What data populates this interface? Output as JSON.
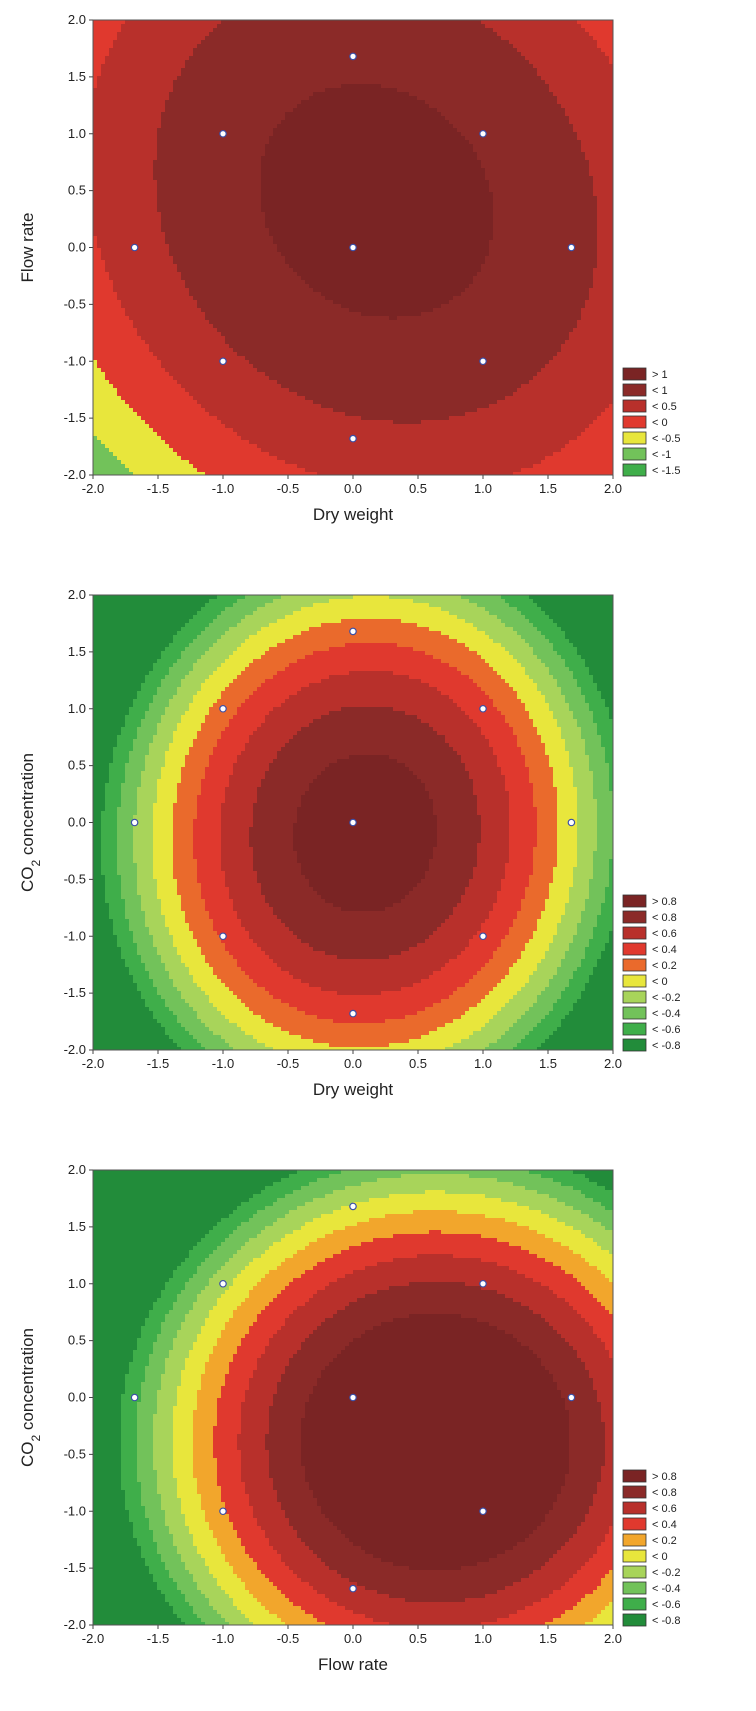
{
  "colors": {
    "gt_max": "#7a2424",
    "band_1": "#8b2a28",
    "band_2": "#b8302b",
    "band_3": "#e0392e",
    "band_4": "#ea6a2c",
    "band_5": "#f2a62c",
    "band_6": "#e8e63c",
    "band_7": "#a8d45a",
    "band_8": "#72c25a",
    "band_9": "#3fae4a",
    "band_10": "#228c3a",
    "point_fill": "#ffffff",
    "point_stroke": "#3a4fa8"
  },
  "chart_data": [
    {
      "type": "contour",
      "xlabel": "Dry weight",
      "ylabel": "Flow rate",
      "ylabel_sub": "",
      "ylabel_rest": "",
      "xlim": [
        -2.0,
        2.0
      ],
      "ylim": [
        -2.0,
        2.0
      ],
      "xticks": [
        "-2.0",
        "-1.5",
        "-1.0",
        "-0.5",
        "0.0",
        "0.5",
        "1.0",
        "1.5",
        "2.0"
      ],
      "yticks": [
        "-2.0",
        "-1.5",
        "-1.0",
        "-0.5",
        "0.0",
        "0.5",
        "1.0",
        "1.5",
        "2.0"
      ],
      "surface": {
        "c": 1.15,
        "ax": -0.38,
        "ay": -0.34,
        "bx": 0.14,
        "by": 0.22,
        "cxy": -0.1,
        "sx": 1.25,
        "sy": 1.35
      },
      "legend": [
        {
          "label": "> 1",
          "threshold": 1,
          "color": "#7a2424"
        },
        {
          "label": "< 1",
          "threshold": 0.5,
          "color": "#8b2a28"
        },
        {
          "label": "< 0.5",
          "threshold": 0,
          "color": "#b8302b"
        },
        {
          "label": "< 0",
          "threshold": -0.5,
          "color": "#e0392e"
        },
        {
          "label": "< -0.5",
          "threshold": -1,
          "color": "#e8e63c"
        },
        {
          "label": "< -1",
          "threshold": -1.5,
          "color": "#72c25a"
        },
        {
          "label": "< -1.5",
          "threshold": null,
          "color": "#3fae4a"
        }
      ],
      "points": [
        {
          "x": 0.0,
          "y": 1.68
        },
        {
          "x": -1.0,
          "y": 1.0
        },
        {
          "x": 1.0,
          "y": 1.0
        },
        {
          "x": -1.68,
          "y": 0.0
        },
        {
          "x": 0.0,
          "y": 0.0
        },
        {
          "x": 1.68,
          "y": 0.0
        },
        {
          "x": -1.0,
          "y": -1.0
        },
        {
          "x": 1.0,
          "y": -1.0
        },
        {
          "x": 0.0,
          "y": -1.68
        }
      ]
    },
    {
      "type": "contour",
      "xlabel": "Dry weight",
      "ylabel": "CO",
      "ylabel_sub": "2",
      "ylabel_rest": " concentration",
      "xlim": [
        -2.0,
        2.0
      ],
      "ylim": [
        -2.0,
        2.0
      ],
      "xticks": [
        "-2.0",
        "-1.5",
        "-1.0",
        "-0.5",
        "0.0",
        "0.5",
        "1.0",
        "1.5",
        "2.0"
      ],
      "yticks": [
        "-2.0",
        "-1.5",
        "-1.0",
        "-0.5",
        "0.0",
        "0.5",
        "1.0",
        "1.5",
        "2.0"
      ],
      "surface": {
        "c": 0.92,
        "ax": -0.42,
        "ay": -0.26,
        "bx": 0.08,
        "by": -0.05,
        "cxy": 0.02,
        "sx": 1.0,
        "sy": 1.0
      },
      "legend": [
        {
          "label": "> 0.8",
          "threshold": 0.8,
          "color": "#7a2424"
        },
        {
          "label": "< 0.8",
          "threshold": 0.6,
          "color": "#8b2a28"
        },
        {
          "label": "< 0.6",
          "threshold": 0.4,
          "color": "#b8302b"
        },
        {
          "label": "< 0.4",
          "threshold": 0.2,
          "color": "#e0392e"
        },
        {
          "label": "< 0.2",
          "threshold": 0,
          "color": "#ea6a2c"
        },
        {
          "label": "< 0",
          "threshold": -0.2,
          "color": "#e8e63c"
        },
        {
          "label": "< -0.2",
          "threshold": -0.4,
          "color": "#a8d45a"
        },
        {
          "label": "< -0.4",
          "threshold": -0.6,
          "color": "#72c25a"
        },
        {
          "label": "< -0.6",
          "threshold": -0.8,
          "color": "#3fae4a"
        },
        {
          "label": "< -0.8",
          "threshold": null,
          "color": "#228c3a"
        }
      ],
      "points": [
        {
          "x": 0.0,
          "y": 1.68
        },
        {
          "x": -1.0,
          "y": 1.0
        },
        {
          "x": 1.0,
          "y": 1.0
        },
        {
          "x": -1.68,
          "y": 0.0
        },
        {
          "x": 0.0,
          "y": 0.0
        },
        {
          "x": 1.68,
          "y": 0.0
        },
        {
          "x": -1.0,
          "y": -1.0
        },
        {
          "x": 1.0,
          "y": -1.0
        },
        {
          "x": 0.0,
          "y": -1.68
        }
      ]
    },
    {
      "type": "contour",
      "xlabel": "Flow rate",
      "ylabel": "CO",
      "ylabel_sub": "2",
      "ylabel_rest": " concentration",
      "xlim": [
        -2.0,
        2.0
      ],
      "ylim": [
        -2.0,
        2.0
      ],
      "xticks": [
        "-2.0",
        "-1.5",
        "-1.0",
        "-0.5",
        "0.0",
        "0.5",
        "1.0",
        "1.5",
        "2.0"
      ],
      "yticks": [
        "-2.0",
        "-1.5",
        "-1.0",
        "-0.5",
        "0.0",
        "0.5",
        "1.0",
        "1.5",
        "2.0"
      ],
      "surface": {
        "c": 0.98,
        "ax": -0.33,
        "ay": -0.28,
        "bx": 0.42,
        "by": -0.22,
        "cxy": 0.0,
        "sx": 1.0,
        "sy": 1.0
      },
      "legend": [
        {
          "label": "> 0.8",
          "threshold": 0.8,
          "color": "#7a2424"
        },
        {
          "label": "< 0.8",
          "threshold": 0.6,
          "color": "#8b2a28"
        },
        {
          "label": "< 0.6",
          "threshold": 0.4,
          "color": "#b8302b"
        },
        {
          "label": "< 0.4",
          "threshold": 0.2,
          "color": "#e0392e"
        },
        {
          "label": "< 0.2",
          "threshold": 0,
          "color": "#f2a62c"
        },
        {
          "label": "< 0",
          "threshold": -0.2,
          "color": "#e8e63c"
        },
        {
          "label": "< -0.2",
          "threshold": -0.4,
          "color": "#a8d45a"
        },
        {
          "label": "< -0.4",
          "threshold": -0.6,
          "color": "#72c25a"
        },
        {
          "label": "< -0.6",
          "threshold": -0.8,
          "color": "#3fae4a"
        },
        {
          "label": "< -0.8",
          "threshold": null,
          "color": "#228c3a"
        }
      ],
      "points": [
        {
          "x": 0.0,
          "y": 1.68
        },
        {
          "x": -1.0,
          "y": 1.0
        },
        {
          "x": 1.0,
          "y": 1.0
        },
        {
          "x": -1.68,
          "y": 0.0
        },
        {
          "x": 0.0,
          "y": 0.0
        },
        {
          "x": 1.68,
          "y": 0.0
        },
        {
          "x": -1.0,
          "y": -1.0
        },
        {
          "x": 1.0,
          "y": -1.0
        },
        {
          "x": 0.0,
          "y": -1.68
        }
      ]
    }
  ]
}
